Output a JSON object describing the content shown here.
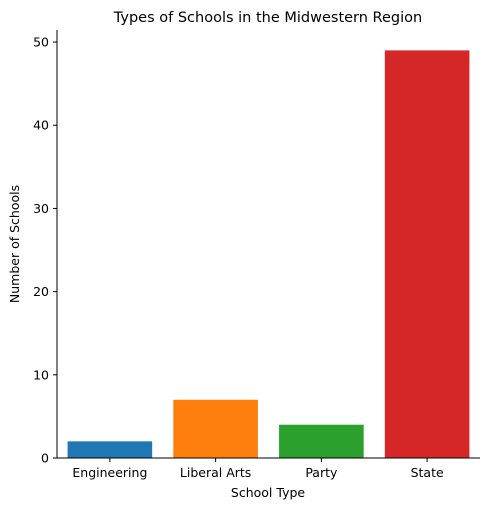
{
  "chart_data": {
    "type": "bar",
    "title": "Types of Schools in the Midwestern Region",
    "xlabel": "School Type",
    "ylabel": "Number of Schools",
    "categories": [
      "Engineering",
      "Liberal Arts",
      "Party",
      "State"
    ],
    "values": [
      2,
      7,
      4,
      49
    ],
    "colors": [
      "#1f77b4",
      "#ff7f0e",
      "#2ca02c",
      "#d62728"
    ],
    "ylim": [
      0,
      51.45
    ],
    "yticks": [
      0,
      10,
      20,
      30,
      40,
      50
    ],
    "grid": false,
    "legend": "none"
  }
}
